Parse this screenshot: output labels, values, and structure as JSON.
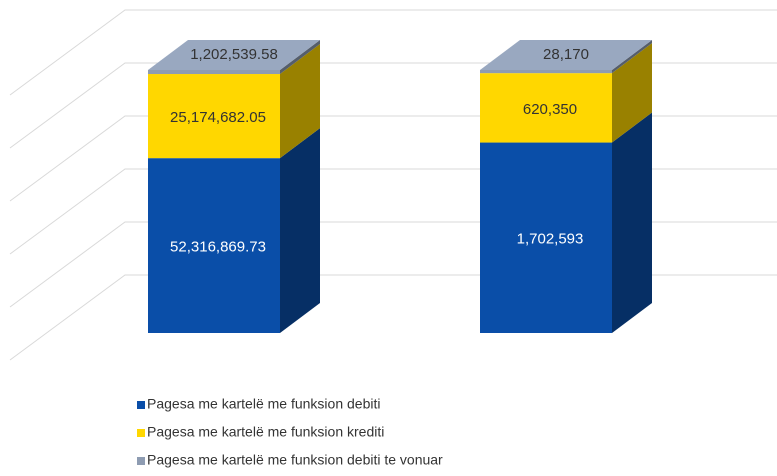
{
  "chart_data": {
    "type": "bar",
    "stacked": "percent",
    "categories": [
      null,
      null
    ],
    "ylim": [
      0,
      100
    ],
    "yticks": [
      0,
      20,
      40,
      60,
      80,
      100
    ],
    "grid": true,
    "legend": "bottom",
    "series": [
      {
        "name": "Pagesa me kartelë me funksion debiti",
        "color": "#0a4ea8",
        "values": [
          52316869.73,
          1702593
        ],
        "value_labels": [
          "52,316,869.73",
          "1,702,593"
        ]
      },
      {
        "name": "Pagesa me kartelë me funksion krediti",
        "color": "#ffd700",
        "values": [
          25174682.05,
          620350
        ],
        "value_labels": [
          "25,174,682.05",
          "620,350"
        ]
      },
      {
        "name": "Pagesa me kartelë me funksion debiti te vonuar",
        "color": "#8e9cb2",
        "values": [
          1202539.58,
          28170
        ],
        "value_labels": [
          "1,202,539.58",
          "28,170"
        ]
      }
    ]
  }
}
